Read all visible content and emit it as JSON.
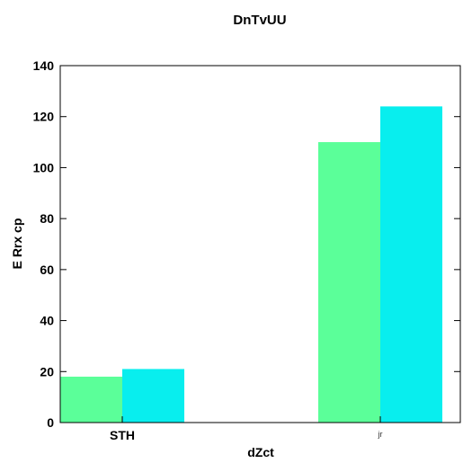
{
  "chart_data": {
    "type": "bar",
    "title": "DnTvUU",
    "xlabel": "dZct",
    "ylabel": "E Rrx cp",
    "categories": [
      "STH",
      "jr"
    ],
    "series": [
      {
        "values": [
          18,
          110
        ],
        "color": "#5bff99"
      },
      {
        "values": [
          21,
          124
        ],
        "color": "#08eeee"
      }
    ],
    "ylim": [
      0,
      140
    ],
    "yticks": [
      0,
      20,
      40,
      60,
      80,
      100,
      120,
      140
    ],
    "grid": false,
    "legend": "none"
  }
}
